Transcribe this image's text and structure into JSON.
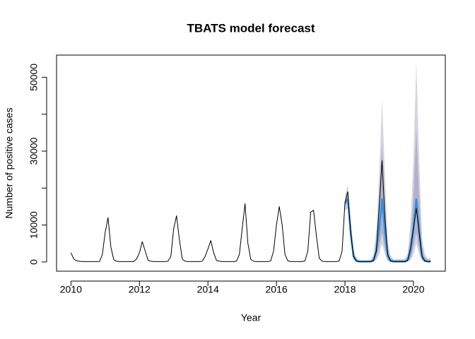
{
  "chart_data": {
    "type": "line",
    "title": "TBATS model forecast",
    "xlabel": "Year",
    "ylabel": "Number of positive cases",
    "xlim": [
      2009.58,
      2020.93
    ],
    "ylim": [
      -2500,
      56000
    ],
    "xticks": [
      2010,
      2012,
      2014,
      2016,
      2018,
      2020
    ],
    "yticks": [
      0,
      10000,
      {
        "value": 20000,
        "label": null
      },
      30000,
      {
        "value": 40000,
        "label": null
      },
      50000
    ],
    "x": [
      2010.0,
      2010.083,
      2010.167,
      2010.25,
      2010.333,
      2010.417,
      2010.5,
      2010.583,
      2010.667,
      2010.75,
      2010.833,
      2010.917,
      2011.0,
      2011.083,
      2011.167,
      2011.25,
      2011.333,
      2011.417,
      2011.5,
      2011.583,
      2011.667,
      2011.75,
      2011.833,
      2011.917,
      2012.0,
      2012.083,
      2012.167,
      2012.25,
      2012.333,
      2012.417,
      2012.5,
      2012.583,
      2012.667,
      2012.75,
      2012.833,
      2012.917,
      2013.0,
      2013.083,
      2013.167,
      2013.25,
      2013.333,
      2013.417,
      2013.5,
      2013.583,
      2013.667,
      2013.75,
      2013.833,
      2013.917,
      2014.0,
      2014.083,
      2014.167,
      2014.25,
      2014.333,
      2014.417,
      2014.5,
      2014.583,
      2014.667,
      2014.75,
      2014.833,
      2014.917,
      2015.0,
      2015.083,
      2015.167,
      2015.25,
      2015.333,
      2015.417,
      2015.5,
      2015.583,
      2015.667,
      2015.75,
      2015.833,
      2015.917,
      2016.0,
      2016.083,
      2016.167,
      2016.25,
      2016.333,
      2016.417,
      2016.5,
      2016.583,
      2016.667,
      2016.75,
      2016.833,
      2016.917,
      2017.0,
      2017.083,
      2017.167,
      2017.25,
      2017.333,
      2017.417,
      2017.5,
      2017.583,
      2017.667,
      2017.75,
      2017.833,
      2017.917,
      2018.0,
      2018.083,
      2018.167,
      2018.25,
      2018.333,
      2018.417,
      2018.5,
      2018.583,
      2018.667,
      2018.75,
      2018.833,
      2018.917,
      2019.0,
      2019.083,
      2019.167,
      2019.25,
      2019.333,
      2019.417,
      2019.5,
      2019.583,
      2019.667,
      2019.75,
      2019.833,
      2019.917,
      2020.0,
      2020.083,
      2020.167,
      2020.25,
      2020.333,
      2020.417,
      2020.5
    ],
    "series": [
      {
        "color": "#000000",
        "values": [
          2500,
          800,
          300,
          200,
          100,
          100,
          100,
          100,
          100,
          100,
          100,
          2000,
          8000,
          12000,
          4000,
          600,
          200,
          100,
          100,
          100,
          100,
          100,
          100,
          800,
          2500,
          5500,
          3000,
          500,
          200,
          100,
          100,
          100,
          100,
          100,
          200,
          1500,
          9000,
          12500,
          6000,
          800,
          200,
          100,
          100,
          100,
          100,
          100,
          200,
          1500,
          3500,
          5800,
          2500,
          400,
          200,
          100,
          100,
          100,
          100,
          100,
          200,
          2000,
          9000,
          15800,
          5000,
          700,
          200,
          100,
          100,
          100,
          100,
          100,
          300,
          3000,
          10000,
          15000,
          10000,
          2000,
          300,
          100,
          100,
          100,
          100,
          100,
          300,
          3000,
          13500,
          14000,
          7000,
          1000,
          200,
          100,
          100,
          100,
          100,
          100,
          300,
          3000,
          16000,
          19000,
          8000,
          1500,
          300,
          100,
          100,
          100,
          100,
          100,
          300,
          3000,
          15000,
          27500,
          12000,
          2000,
          300,
          100,
          100,
          100,
          100,
          100,
          500,
          4000,
          9000,
          14500,
          8000,
          1500,
          300,
          100,
          100
        ]
      }
    ],
    "forecast": {
      "x": [
        2018.0,
        2018.083,
        2018.167,
        2018.25,
        2018.333,
        2018.417,
        2018.5,
        2018.583,
        2018.667,
        2018.75,
        2018.833,
        2018.917,
        2019.0,
        2019.083,
        2019.167,
        2019.25,
        2019.333,
        2019.417,
        2019.5,
        2019.583,
        2019.667,
        2019.75,
        2019.833,
        2019.917,
        2020.0,
        2020.083,
        2020.167,
        2020.25,
        2020.333,
        2020.417,
        2020.5
      ],
      "color": "#2f8fe0",
      "color80": "#b1b1cc",
      "color95": "#d5d5dd",
      "mean": [
        16000,
        17000,
        8000,
        1500,
        300,
        100,
        100,
        100,
        100,
        100,
        500,
        3000,
        9000,
        17000,
        8000,
        1500,
        300,
        100,
        100,
        100,
        100,
        100,
        500,
        3000,
        9000,
        17000,
        8000,
        1500,
        300,
        100,
        100
      ],
      "lo80": [
        15000,
        16000,
        6000,
        800,
        100,
        0,
        0,
        0,
        0,
        0,
        100,
        1000,
        4000,
        8000,
        3500,
        500,
        0,
        0,
        0,
        0,
        0,
        0,
        100,
        1000,
        4000,
        8000,
        3500,
        500,
        0,
        0,
        0
      ],
      "hi80": [
        17000,
        18000,
        10000,
        2500,
        800,
        300,
        300,
        300,
        300,
        300,
        1200,
        6000,
        17000,
        32000,
        16000,
        3500,
        1000,
        500,
        500,
        500,
        500,
        500,
        1500,
        7000,
        18000,
        36000,
        18000,
        4000,
        1200,
        600,
        600
      ],
      "lo95": [
        14000,
        14500,
        5000,
        500,
        0,
        0,
        0,
        0,
        0,
        0,
        0,
        500,
        2000,
        5000,
        2000,
        200,
        0,
        0,
        0,
        0,
        0,
        0,
        0,
        500,
        2000,
        5000,
        2000,
        200,
        0,
        0,
        0
      ],
      "hi95": [
        18000,
        21000,
        12000,
        3500,
        1200,
        500,
        500,
        500,
        500,
        500,
        2000,
        9000,
        24000,
        44000,
        24000,
        5500,
        1800,
        800,
        800,
        800,
        800,
        800,
        2500,
        11000,
        28000,
        54000,
        28000,
        6500,
        2000,
        1000,
        1000
      ]
    }
  }
}
